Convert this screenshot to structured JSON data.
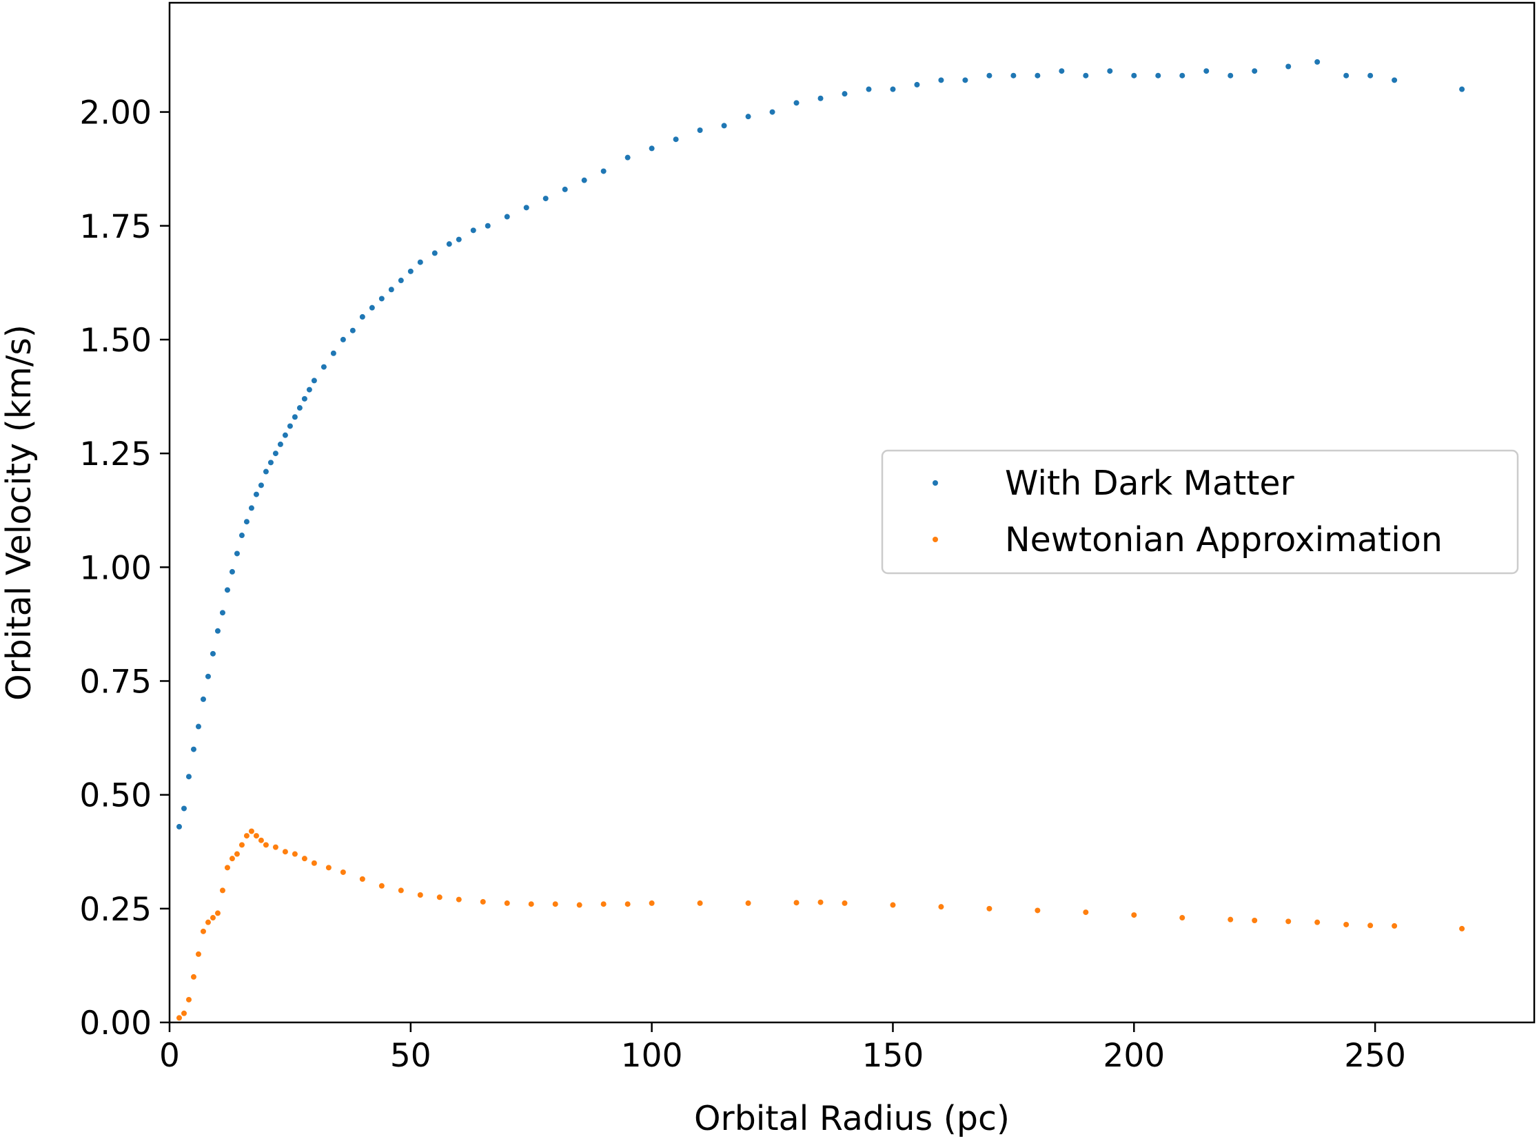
{
  "chart_data": {
    "type": "scatter",
    "title": "",
    "xlabel": "Orbital Radius (pc)",
    "ylabel": "Orbital Velocity (km/s)",
    "xlim": [
      0,
      283
    ],
    "ylim": [
      0,
      2.24
    ],
    "xticks": [
      0,
      50,
      100,
      150,
      200,
      250
    ],
    "xtick_labels": [
      "0",
      "50",
      "100",
      "150",
      "200",
      "250"
    ],
    "yticks": [
      0,
      0.25,
      0.5,
      0.75,
      1.0,
      1.25,
      1.5,
      1.75,
      2.0
    ],
    "ytick_labels": [
      "0.00",
      "0.25",
      "0.50",
      "0.75",
      "1.00",
      "1.25",
      "1.50",
      "1.75",
      "2.00"
    ],
    "grid": false,
    "legend_position": "center-right",
    "series": [
      {
        "name": "With Dark Matter",
        "color": "#1f77b4",
        "x": [
          2,
          3,
          4,
          5,
          6,
          7,
          8,
          9,
          10,
          11,
          12,
          13,
          14,
          15,
          16,
          17,
          18,
          19,
          20,
          21,
          22,
          23,
          24,
          25,
          26,
          27,
          28,
          29,
          30,
          32,
          34,
          36,
          38,
          40,
          42,
          44,
          46,
          48,
          50,
          52,
          55,
          58,
          60,
          63,
          66,
          70,
          74,
          78,
          82,
          86,
          90,
          95,
          100,
          105,
          110,
          115,
          120,
          125,
          130,
          135,
          140,
          145,
          150,
          155,
          160,
          165,
          170,
          175,
          180,
          185,
          190,
          195,
          200,
          205,
          210,
          215,
          220,
          225,
          232,
          238,
          244,
          249,
          254,
          268
        ],
        "y": [
          0.43,
          0.47,
          0.54,
          0.6,
          0.65,
          0.71,
          0.76,
          0.81,
          0.86,
          0.9,
          0.95,
          0.99,
          1.03,
          1.07,
          1.1,
          1.13,
          1.16,
          1.18,
          1.21,
          1.23,
          1.25,
          1.27,
          1.29,
          1.31,
          1.33,
          1.35,
          1.37,
          1.39,
          1.41,
          1.44,
          1.47,
          1.5,
          1.52,
          1.55,
          1.57,
          1.59,
          1.61,
          1.63,
          1.65,
          1.67,
          1.69,
          1.71,
          1.72,
          1.74,
          1.75,
          1.77,
          1.79,
          1.81,
          1.83,
          1.85,
          1.87,
          1.9,
          1.92,
          1.94,
          1.96,
          1.97,
          1.99,
          2.0,
          2.02,
          2.03,
          2.04,
          2.05,
          2.05,
          2.06,
          2.07,
          2.07,
          2.08,
          2.08,
          2.08,
          2.09,
          2.08,
          2.09,
          2.08,
          2.08,
          2.08,
          2.09,
          2.08,
          2.09,
          2.1,
          2.11,
          2.08,
          2.08,
          2.07,
          2.05
        ]
      },
      {
        "name": "Newtonian Approximation",
        "color": "#ff7f0e",
        "x": [
          2,
          3,
          4,
          5,
          6,
          7,
          8,
          9,
          10,
          11,
          12,
          13,
          14,
          15,
          16,
          17,
          18,
          19,
          20,
          22,
          24,
          26,
          28,
          30,
          33,
          36,
          40,
          44,
          48,
          52,
          56,
          60,
          65,
          70,
          75,
          80,
          85,
          90,
          95,
          100,
          110,
          120,
          130,
          135,
          140,
          150,
          160,
          170,
          180,
          190,
          200,
          210,
          220,
          225,
          232,
          238,
          244,
          249,
          254,
          268
        ],
        "y": [
          0.01,
          0.02,
          0.05,
          0.1,
          0.15,
          0.2,
          0.22,
          0.23,
          0.24,
          0.29,
          0.34,
          0.36,
          0.37,
          0.39,
          0.41,
          0.42,
          0.41,
          0.4,
          0.39,
          0.385,
          0.375,
          0.37,
          0.36,
          0.35,
          0.34,
          0.33,
          0.315,
          0.3,
          0.29,
          0.28,
          0.275,
          0.27,
          0.265,
          0.262,
          0.26,
          0.26,
          0.258,
          0.26,
          0.26,
          0.262,
          0.262,
          0.262,
          0.263,
          0.264,
          0.262,
          0.258,
          0.254,
          0.25,
          0.246,
          0.242,
          0.236,
          0.23,
          0.226,
          0.224,
          0.222,
          0.22,
          0.215,
          0.213,
          0.212,
          0.206
        ]
      }
    ]
  }
}
